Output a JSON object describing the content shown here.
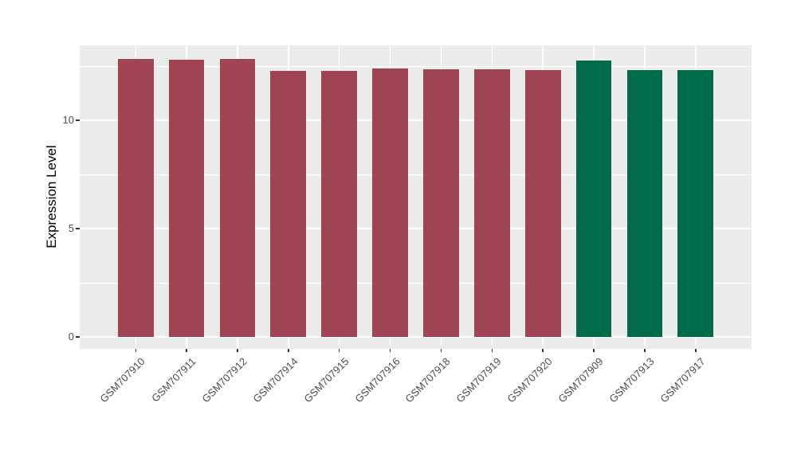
{
  "figure": {
    "background": "#FFFFFF"
  },
  "chart_data": {
    "type": "bar",
    "title": "",
    "xlabel": "",
    "ylabel": "Expression Level",
    "categories": [
      "GSM707910",
      "GSM707911",
      "GSM707912",
      "GSM707914",
      "GSM707915",
      "GSM707916",
      "GSM707918",
      "GSM707919",
      "GSM707920",
      "GSM707909",
      "GSM707913",
      "GSM707917"
    ],
    "values": [
      12.83,
      12.8,
      12.83,
      12.28,
      12.3,
      12.39,
      12.35,
      12.35,
      12.32,
      12.76,
      12.32,
      12.33
    ],
    "bar_colors": [
      "#9E4452",
      "#9E4452",
      "#9E4452",
      "#9E4452",
      "#9E4452",
      "#9E4452",
      "#9E4452",
      "#9E4452",
      "#9E4452",
      "#006B4B",
      "#006B4B",
      "#006B4B"
    ],
    "yticks": [
      0,
      5,
      10
    ],
    "ytick_labels": [
      "0",
      "5",
      "10"
    ],
    "yticks_minor": [
      2.5,
      7.5,
      12.5
    ],
    "ylim": [
      0,
      13.46
    ],
    "ylim_render": [
      -0.55,
      13.46
    ],
    "x_expand_units": 0.6,
    "bar_width_fraction": 0.7,
    "grid": true,
    "legend": false,
    "panel_background": "#EBEBEB",
    "grid_color": "#FFFFFF",
    "axis_text_color": "#4D4D4D",
    "tick_color": "#333333"
  }
}
